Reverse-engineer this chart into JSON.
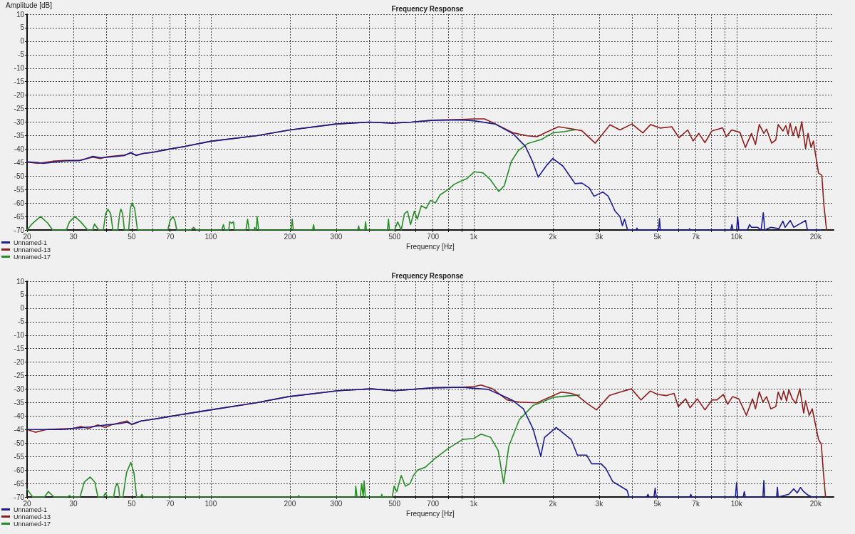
{
  "chart_data": [
    {
      "type": "line",
      "title": "Frequency Response",
      "xlabel": "Frequency [Hz]",
      "ylabel": "Amplitude [dB]",
      "log": "x",
      "grid": true,
      "legend": "bottom left",
      "marker": "none",
      "xlim": [
        20,
        23400
      ],
      "ylim": [
        -70,
        10
      ],
      "xticks": [
        20,
        30,
        {
          "value": 40,
          "label": null
        },
        50,
        {
          "value": 60,
          "label": null
        },
        70,
        {
          "value": 80,
          "label": null
        },
        {
          "value": 90,
          "label": null
        },
        100,
        200,
        300,
        {
          "value": 400,
          "label": null
        },
        500,
        {
          "value": 600,
          "label": null
        },
        700,
        {
          "value": 800,
          "label": null
        },
        {
          "value": 900,
          "label": null
        },
        {
          "value": 1000,
          "label": "1k"
        },
        {
          "value": 2000,
          "label": "2k"
        },
        {
          "value": 3000,
          "label": "3k"
        },
        {
          "value": 4000,
          "label": null
        },
        {
          "value": 5000,
          "label": "5k"
        },
        {
          "value": 6000,
          "label": null
        },
        {
          "value": 7000,
          "label": "7k"
        },
        {
          "value": 8000,
          "label": null
        },
        {
          "value": 9000,
          "label": null
        },
        {
          "value": 10000,
          "label": "10k"
        },
        {
          "value": 20000,
          "label": "20k"
        }
      ],
      "yticks": [
        -70,
        -65,
        -60,
        -55,
        -50,
        -45,
        -40,
        -35,
        -30,
        -25,
        -20,
        -15,
        -10,
        -5,
        0,
        5,
        10
      ],
      "series": [
        {
          "name": "Unnamed-1",
          "color": "#1c1c8c",
          "x": [
            20,
            22,
            23,
            25.8,
            28,
            31.6,
            33,
            35.6,
            38,
            40.6,
            43,
            46.9,
            49.6,
            52,
            55.4,
            60,
            69.6,
            80,
            100,
            150,
            200,
            300,
            400,
            490,
            580,
            700,
            900,
            1000,
            1205,
            1415,
            1573,
            1675,
            1760,
            1895,
            2000,
            2185,
            2430,
            2580,
            2750,
            2870,
            3100,
            3250,
            3450,
            3600,
            3680,
            3750,
            3850,
            4150,
            4180,
            4210,
            5050,
            5090,
            5130,
            6600,
            6620,
            6640,
            9500,
            9600,
            9700,
            10000,
            10100,
            10200,
            11000,
            11200,
            11400,
            12000,
            12400,
            12640,
            12800,
            13500,
            14500,
            15000,
            15300,
            16000,
            16500,
            17200,
            18300,
            18600,
            21000
          ],
          "values": [
            -44.7,
            -45,
            -45.3,
            -44.8,
            -44.4,
            -44.3,
            -43.8,
            -42.7,
            -43.2,
            -43,
            -42.8,
            -42.4,
            -41.3,
            -42.4,
            -41.6,
            -41.2,
            -40,
            -39,
            -37.1,
            -35,
            -32.9,
            -30.7,
            -30,
            -30.4,
            -30,
            -29.3,
            -29.2,
            -29.5,
            -30.7,
            -34.4,
            -39,
            -44.7,
            -50.4,
            -46,
            -43.5,
            -46.3,
            -52.8,
            -52.6,
            -54.4,
            -57.5,
            -55.9,
            -57.5,
            -63,
            -65,
            -68.4,
            -66,
            -70,
            -70,
            -69.3,
            -70,
            -70,
            -65.8,
            -70,
            -70,
            -69.5,
            -70,
            -70,
            -68,
            -70,
            -70,
            -65,
            -70,
            -70,
            -68,
            -69,
            -69,
            -70,
            -63.6,
            -70,
            -69,
            -69.5,
            -66.7,
            -69,
            -66.5,
            -69,
            -68,
            -66.5,
            -70,
            -70
          ]
        },
        {
          "name": "Unnamed-13",
          "color": "#8b1e1e",
          "x": [
            20,
            22,
            25,
            28,
            31.6,
            35.6,
            38,
            40.6,
            46.9,
            49.6,
            52,
            55.4,
            60,
            69.6,
            80,
            100,
            150,
            200,
            300,
            400,
            490,
            580,
            700,
            900,
            1000,
            1100,
            1200,
            1415,
            1600,
            1740,
            1895,
            2100,
            2430,
            2580,
            2900,
            3300,
            3600,
            4000,
            4400,
            4710,
            5120,
            5670,
            6040,
            6520,
            6830,
            7180,
            7580,
            8050,
            8850,
            9130,
            9580,
            10300,
            10800,
            11400,
            11800,
            12200,
            12700,
            13000,
            13600,
            14100,
            14400,
            15000,
            15400,
            15700,
            16000,
            16400,
            16800,
            17200,
            17700,
            18300,
            18700,
            19200,
            19600,
            20500,
            21100,
            21500,
            22000
          ],
          "values": [
            -44.8,
            -45.3,
            -44.5,
            -44.2,
            -44.2,
            -43,
            -43.5,
            -42.8,
            -42.2,
            -41.5,
            -42.2,
            -41.6,
            -41.2,
            -40,
            -39,
            -37.1,
            -35,
            -32.9,
            -30.7,
            -30,
            -30.4,
            -30,
            -29.3,
            -29,
            -28.8,
            -28.8,
            -30.5,
            -34,
            -35.1,
            -35.4,
            -33.7,
            -31.7,
            -32.7,
            -33.2,
            -37.8,
            -31,
            -32.9,
            -30.7,
            -34,
            -30.9,
            -32.2,
            -31.7,
            -35.8,
            -32.9,
            -37,
            -34.2,
            -37.6,
            -33.3,
            -32.1,
            -35.4,
            -32.9,
            -33.8,
            -39.4,
            -34.2,
            -38.3,
            -30.9,
            -34.2,
            -32.6,
            -37.8,
            -36.6,
            -30.9,
            -33.3,
            -31.3,
            -34.6,
            -30.5,
            -35,
            -31.7,
            -35.8,
            -29.9,
            -39.8,
            -34.2,
            -39.4,
            -37,
            -48.9,
            -49.7,
            -61,
            -70
          ]
        },
        {
          "name": "Unnamed-17",
          "color": "#2a8a2a",
          "x": [
            20,
            21,
            22.5,
            24,
            25,
            28.2,
            29,
            30.4,
            32,
            34,
            35.5,
            36.1,
            37.5,
            39,
            39.8,
            40.6,
            41.6,
            42.4,
            44.3,
            45,
            45.5,
            46.2,
            46.9,
            48.7,
            49.4,
            50.2,
            51.3,
            52.6,
            68.6,
            70,
            71.8,
            73,
            74.2,
            84,
            86,
            88,
            110,
            111.7,
            113,
            117,
            118,
            120,
            122,
            123,
            136,
            138,
            140,
            146,
            147,
            148,
            149,
            150,
            152,
            202,
            204,
            206,
            244,
            246,
            248,
            362,
            365,
            368,
            385,
            388,
            391,
            470,
            474,
            478,
            500,
            514,
            530,
            545,
            560,
            575,
            595,
            610,
            632,
            660,
            685,
            715,
            745,
            800,
            845,
            890,
            940,
            1007,
            1084,
            1154,
            1245,
            1307,
            1390,
            1480,
            1600,
            1813,
            2000,
            2220,
            2430
          ],
          "values": [
            -70,
            -67.5,
            -65,
            -67.5,
            -70,
            -70,
            -67,
            -65,
            -67,
            -70,
            -70,
            -67.8,
            -70,
            -70,
            -64,
            -62.3,
            -64,
            -70,
            -70,
            -64,
            -62.3,
            -64,
            -70,
            -70,
            -62,
            -59.9,
            -62,
            -70,
            -70,
            -66.5,
            -65,
            -66.5,
            -70,
            -70,
            -69,
            -70,
            -70,
            -68,
            -70,
            -70,
            -67,
            -67.5,
            -67,
            -70,
            -70,
            -66,
            -70,
            -70,
            -69,
            -70,
            -70,
            -65,
            -70,
            -70,
            -66,
            -70,
            -70,
            -68,
            -70,
            -70,
            -68.5,
            -70,
            -70,
            -67,
            -70,
            -70,
            -66,
            -70,
            -70,
            -67,
            -70,
            -64,
            -63,
            -68,
            -63,
            -66,
            -61,
            -62,
            -59,
            -60,
            -57,
            -55,
            -53,
            -52,
            -51,
            -48.4,
            -48.8,
            -51.2,
            -55.7,
            -53.6,
            -44.6,
            -40.5,
            -38,
            -36.4,
            -34,
            -33.5,
            -32.8
          ]
        }
      ]
    },
    {
      "type": "line",
      "title": "Frequency Response",
      "xlabel": "Frequency [Hz]",
      "log": "x",
      "grid": true,
      "legend": "bottom left",
      "marker": "none",
      "xlim": [
        20,
        23400
      ],
      "ylim": [
        -70,
        10
      ],
      "xticks": [
        20,
        30,
        {
          "value": 40,
          "label": null
        },
        50,
        {
          "value": 60,
          "label": null
        },
        70,
        {
          "value": 80,
          "label": null
        },
        {
          "value": 90,
          "label": null
        },
        100,
        200,
        300,
        {
          "value": 400,
          "label": null
        },
        500,
        {
          "value": 600,
          "label": null
        },
        700,
        {
          "value": 800,
          "label": null
        },
        {
          "value": 900,
          "label": null
        },
        {
          "value": 1000,
          "label": "1k"
        },
        {
          "value": 2000,
          "label": "2k"
        },
        {
          "value": 3000,
          "label": "3k"
        },
        {
          "value": 4000,
          "label": null
        },
        {
          "value": 5000,
          "label": "5k"
        },
        {
          "value": 6000,
          "label": null
        },
        {
          "value": 7000,
          "label": "7k"
        },
        {
          "value": 8000,
          "label": null
        },
        {
          "value": 9000,
          "label": null
        },
        {
          "value": 10000,
          "label": "10k"
        },
        {
          "value": 20000,
          "label": "20k"
        }
      ],
      "yticks": [
        -70,
        -65,
        -60,
        -55,
        -50,
        -45,
        -40,
        -35,
        -30,
        -25,
        -20,
        -15,
        -10,
        -5,
        0,
        5,
        10
      ],
      "series": [
        {
          "name": "Unnamed-1",
          "color": "#1c1c8c",
          "x": [
            20,
            23.7,
            27,
            30.6,
            35,
            39.9,
            45,
            48,
            50,
            54.3,
            60,
            69.4,
            80,
            100,
            150,
            197,
            305,
            407,
            498,
            707,
            906,
            1000,
            1134,
            1256,
            1397,
            1545,
            1680,
            1800,
            1860,
            2060,
            2350,
            2480,
            2690,
            2810,
            3050,
            3180,
            3380,
            3600,
            3830,
            3900,
            4550,
            4600,
            4650,
            4850,
            4900,
            4950,
            6650,
            6700,
            6750,
            9900,
            10000,
            10100,
            10600,
            10700,
            10800,
            12600,
            12700,
            12800,
            14200,
            14300,
            14400,
            15800,
            16500,
            17000,
            17500,
            18000,
            18500,
            19300,
            21000
          ],
          "values": [
            -45,
            -45,
            -45,
            -44.5,
            -44,
            -43.3,
            -42.8,
            -42.3,
            -43,
            -41.8,
            -41.2,
            -40.2,
            -39.2,
            -37.7,
            -35,
            -32.8,
            -30.6,
            -29.9,
            -30.6,
            -29.5,
            -29.3,
            -29.7,
            -30.1,
            -32,
            -34,
            -37.3,
            -44.6,
            -54.9,
            -47.9,
            -44.2,
            -48.7,
            -54.5,
            -54.5,
            -57.7,
            -57.7,
            -59.4,
            -64.3,
            -65.9,
            -67.5,
            -70,
            -70,
            -69,
            -70,
            -70,
            -66.7,
            -70,
            -70,
            -69,
            -70,
            -70,
            -64.7,
            -70,
            -70,
            -68,
            -70,
            -70,
            -63.9,
            -70,
            -70,
            -66.4,
            -70,
            -69,
            -67,
            -68.5,
            -66.5,
            -68,
            -69,
            -70,
            -70
          ]
        },
        {
          "name": "Unnamed-13",
          "color": "#8b1e1e",
          "x": [
            20,
            21.5,
            23.7,
            26,
            30,
            32,
            34.2,
            37.2,
            39.6,
            42,
            48,
            50,
            54.3,
            60,
            69.4,
            80,
            100,
            150,
            197,
            305,
            407,
            498,
            707,
            906,
            1000,
            1067,
            1180,
            1340,
            1490,
            1745,
            1840,
            2150,
            2350,
            2480,
            2690,
            2930,
            3280,
            3600,
            3980,
            4330,
            4700,
            5000,
            5420,
            5780,
            6000,
            6400,
            6650,
            7090,
            7580,
            8070,
            8420,
            8900,
            9250,
            9650,
            10200,
            10900,
            11500,
            11800,
            12200,
            12600,
            13000,
            13500,
            14100,
            14400,
            14800,
            15100,
            15500,
            15800,
            16300,
            16800,
            17400,
            18000,
            18300,
            18900,
            19400,
            20500,
            21000,
            21400,
            21800
          ],
          "values": [
            -45,
            -46,
            -45,
            -44.8,
            -44.6,
            -43.9,
            -44.6,
            -43.3,
            -44.2,
            -43.2,
            -41.8,
            -43.2,
            -41.8,
            -41.2,
            -40.2,
            -39.2,
            -37.7,
            -35,
            -32.8,
            -30.6,
            -29.9,
            -30.6,
            -29.5,
            -29.3,
            -29.1,
            -28.5,
            -29.9,
            -34,
            -34.8,
            -35.1,
            -34,
            -31.1,
            -31.6,
            -32.4,
            -35.2,
            -37.7,
            -32.4,
            -31.1,
            -29.9,
            -34,
            -30.7,
            -32,
            -32.4,
            -31.6,
            -36.5,
            -33.6,
            -36.9,
            -33.6,
            -37.7,
            -34,
            -34,
            -32,
            -35.6,
            -32.8,
            -33.6,
            -39.7,
            -33.6,
            -37.3,
            -31,
            -34.8,
            -32.8,
            -37.3,
            -36.5,
            -31.1,
            -34,
            -30.7,
            -34.4,
            -30.3,
            -33.6,
            -35.2,
            -29.9,
            -38.9,
            -34.4,
            -39.7,
            -37.3,
            -48.7,
            -50.4,
            -61,
            -70
          ]
        },
        {
          "name": "Unnamed-17",
          "color": "#2a8a2a",
          "x": [
            20,
            21,
            23.3,
            24.1,
            25.3,
            28.5,
            29,
            29.5,
            31.8,
            33,
            34.8,
            36.2,
            37.2,
            39,
            39.7,
            40.4,
            42.7,
            43.3,
            44,
            44.6,
            45,
            46.3,
            47.8,
            49.6,
            51,
            52.2,
            54,
            54.7,
            55.4,
            214,
            216,
            218,
            354,
            356,
            360,
            370,
            375,
            380,
            383,
            387,
            445,
            447,
            449,
            490,
            498,
            510,
            530,
            550,
            573,
            590,
            612,
            654,
            707,
            800,
            906,
            1000,
            1067,
            1160,
            1240,
            1300,
            1360,
            1490,
            1680,
            1820,
            2020,
            2350,
            2530
          ],
          "values": [
            -67.1,
            -70,
            -70,
            -68,
            -70,
            -70,
            -69.5,
            -70,
            -70,
            -64.5,
            -62.6,
            -64.5,
            -70,
            -70,
            -68.5,
            -70,
            -70,
            -66.5,
            -64.9,
            -66.5,
            -70,
            -70,
            -61,
            -57.2,
            -61,
            -70,
            -70,
            -69,
            -70,
            -70,
            -69.5,
            -70,
            -70,
            -66,
            -70,
            -70,
            -65,
            -70,
            -64,
            -70,
            -70,
            -69,
            -70,
            -70,
            -66,
            -68,
            -62,
            -66,
            -65,
            -62,
            -60,
            -59,
            -56,
            -52,
            -48.7,
            -48.3,
            -46.7,
            -47.9,
            -52.8,
            -65.1,
            -51.2,
            -41.4,
            -36.1,
            -34.8,
            -33,
            -32.4,
            -32.2
          ]
        }
      ]
    }
  ]
}
